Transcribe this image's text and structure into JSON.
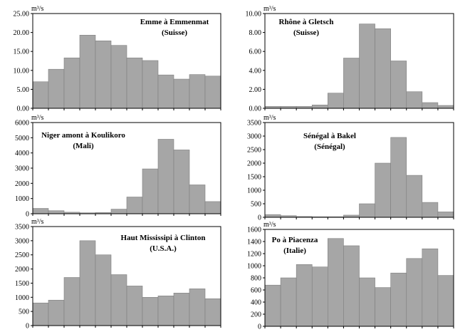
{
  "chart_data": [
    {
      "type": "bar",
      "title": "Emme à Emmenmat",
      "subtitle": "(Suisse)",
      "ylabel": "m³/s",
      "ylim": [
        0,
        25
      ],
      "yticks": [
        "0.00",
        "5.00",
        "10.00",
        "15.00",
        "20.00",
        "25.00"
      ],
      "values": [
        7.0,
        10.3,
        13.3,
        19.3,
        17.8,
        16.6,
        13.3,
        12.6,
        8.8,
        7.7,
        8.9,
        8.5
      ],
      "bar_color": "#a6a6a6"
    },
    {
      "type": "bar",
      "title": "Rhône à Gletsch",
      "subtitle": "(Suisse)",
      "ylabel": "m³/s",
      "ylim": [
        0,
        10
      ],
      "yticks": [
        "0.00",
        "2.00",
        "4.00",
        "6.00",
        "8.00",
        "10.00"
      ],
      "values": [
        0.2,
        0.2,
        0.2,
        0.35,
        1.6,
        5.3,
        8.9,
        8.4,
        5.0,
        1.75,
        0.6,
        0.3
      ],
      "bar_color": "#a6a6a6"
    },
    {
      "type": "bar",
      "title": "Niger amont à Koulikoro",
      "subtitle": "(Mali)",
      "ylabel": "m³/s",
      "ylim": [
        0,
        6000
      ],
      "yticks": [
        "0",
        "1000",
        "2000",
        "3000",
        "4000",
        "5000",
        "6000"
      ],
      "values": [
        350,
        200,
        100,
        60,
        80,
        300,
        1100,
        2950,
        4900,
        4200,
        1900,
        800
      ],
      "bar_color": "#a6a6a6"
    },
    {
      "type": "bar",
      "title": "Sénégal à Bakel",
      "subtitle": "(Sénégal)",
      "ylabel": "m³/s",
      "ylim": [
        0,
        3500
      ],
      "yticks": [
        "0",
        "500",
        "1000",
        "1500",
        "2000",
        "2500",
        "3000",
        "3500"
      ],
      "values": [
        100,
        60,
        30,
        20,
        20,
        80,
        500,
        2000,
        2950,
        1550,
        550,
        200
      ],
      "bar_color": "#a6a6a6"
    },
    {
      "type": "bar",
      "title": "Haut Mississipi à Clinton",
      "subtitle": "(U.S.A.)",
      "ylabel": "m³/s",
      "ylim": [
        0,
        3500
      ],
      "yticks": [
        "0",
        "500",
        "1000",
        "1500",
        "2000",
        "2500",
        "3000",
        "3500"
      ],
      "values": [
        800,
        900,
        1700,
        3000,
        2500,
        1800,
        1400,
        1000,
        1050,
        1150,
        1300,
        950
      ],
      "bar_color": "#a6a6a6"
    },
    {
      "type": "bar",
      "title": "Po à Piacenza",
      "subtitle": "(Italie)",
      "ylabel": "m³/s",
      "ylim": [
        0,
        1600
      ],
      "yticks": [
        "0",
        "200",
        "400",
        "600",
        "800",
        "1000",
        "1200",
        "1400",
        "1600"
      ],
      "values": [
        680,
        800,
        1020,
        980,
        1450,
        1330,
        800,
        640,
        880,
        1120,
        1280,
        840
      ],
      "bar_color": "#a6a6a6"
    }
  ]
}
